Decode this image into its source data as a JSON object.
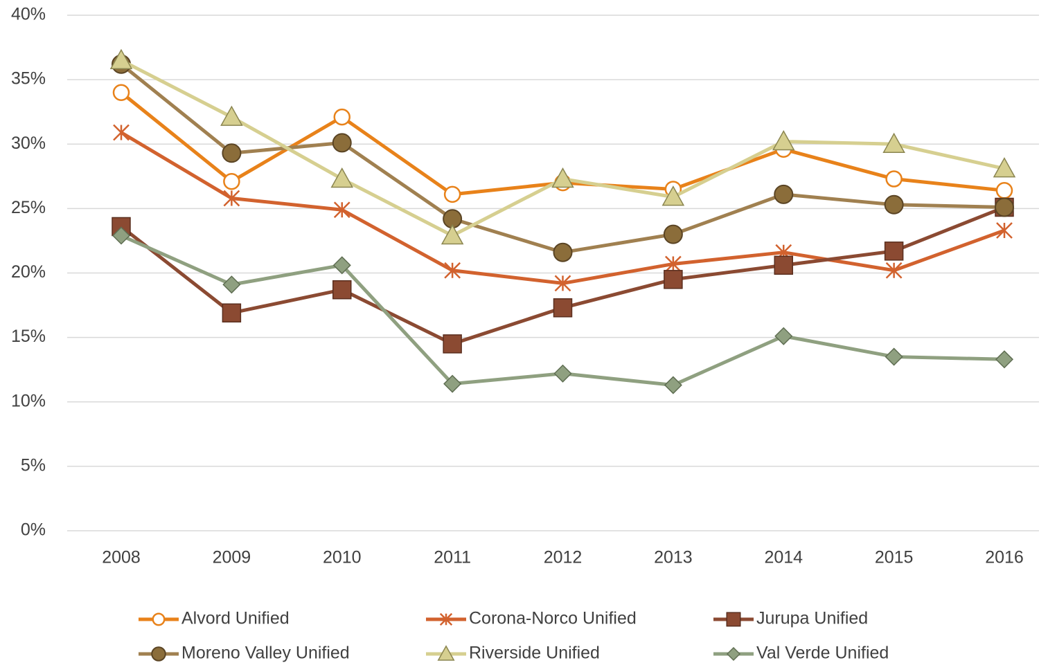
{
  "chart_data": {
    "type": "line",
    "categories": [
      "2008",
      "2009",
      "2010",
      "2011",
      "2012",
      "2013",
      "2014",
      "2015",
      "2016"
    ],
    "series": [
      {
        "name": "Alvord Unified",
        "color": "#e8821a",
        "marker": "open-circle",
        "values": [
          34.0,
          27.1,
          32.1,
          26.1,
          27.0,
          26.5,
          29.6,
          27.3,
          26.4
        ]
      },
      {
        "name": "Corona-Norco Unified",
        "color": "#d2622e",
        "marker": "asterisk",
        "values": [
          30.9,
          25.8,
          24.9,
          20.2,
          19.2,
          20.7,
          21.6,
          20.2,
          23.3
        ]
      },
      {
        "name": "Jurupa Unified",
        "color": "#8b4a32",
        "marker": "square",
        "values": [
          23.6,
          16.9,
          18.7,
          14.5,
          17.3,
          19.5,
          20.6,
          21.7,
          25.1
        ]
      },
      {
        "name": "Moreno Valley Unified",
        "color": "#a08050",
        "marker": "circle",
        "values": [
          36.2,
          29.3,
          30.1,
          24.2,
          21.6,
          23.0,
          26.1,
          25.3,
          25.1
        ]
      },
      {
        "name": "Riverside Unified",
        "color": "#d6cf90",
        "marker": "triangle",
        "values": [
          36.5,
          32.1,
          27.3,
          22.9,
          27.3,
          25.9,
          30.2,
          30.0,
          28.1
        ]
      },
      {
        "name": "Val Verde Unified",
        "color": "#8fa080",
        "marker": "diamond",
        "values": [
          22.9,
          19.1,
          20.6,
          11.4,
          12.2,
          11.3,
          15.1,
          13.5,
          13.3
        ]
      }
    ],
    "ylim": [
      0,
      40
    ],
    "yticks": [
      {
        "value": 0,
        "label": "0%"
      },
      {
        "value": 5,
        "label": "5%"
      },
      {
        "value": 10,
        "label": "10%"
      },
      {
        "value": 15,
        "label": "15%"
      },
      {
        "value": 20,
        "label": "20%"
      },
      {
        "value": 25,
        "label": "25%"
      },
      {
        "value": 30,
        "label": "30%"
      },
      {
        "value": 35,
        "label": "35%"
      },
      {
        "value": 40,
        "label": "40%"
      }
    ],
    "grid": true,
    "legend": "bottom"
  }
}
